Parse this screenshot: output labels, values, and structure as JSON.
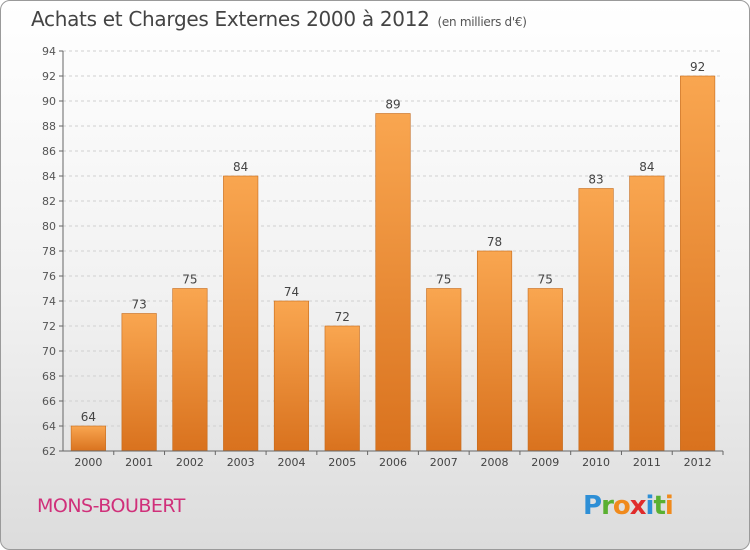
{
  "title": "Achats et Charges Externes 2000 à 2012",
  "unit": "(en milliers d'€)",
  "place": "MONS-BOUBERT",
  "logo": {
    "text": "Proxiti",
    "letters": [
      {
        "char": "P",
        "color": "#2e8fd6"
      },
      {
        "char": "r",
        "color": "#5ab031"
      },
      {
        "char": "o",
        "color": "#f08a1c"
      },
      {
        "char": "x",
        "color": "#e02b2b"
      },
      {
        "char": "i",
        "color": "#2e8fd6"
      },
      {
        "char": "t",
        "color": "#5ab031"
      },
      {
        "char": "i",
        "color": "#f08a1c"
      }
    ]
  },
  "colors": {
    "bar_light": "#f9a650",
    "bar_dark": "#d9721e",
    "grid": "#d0d0d0",
    "axis": "#666666"
  },
  "chart_data": {
    "type": "bar",
    "categories": [
      "2000",
      "2001",
      "2002",
      "2003",
      "2004",
      "2005",
      "2006",
      "2007",
      "2008",
      "2009",
      "2010",
      "2011",
      "2012"
    ],
    "values": [
      64,
      73,
      75,
      84,
      74,
      72,
      89,
      75,
      78,
      75,
      83,
      84,
      92
    ],
    "title": "Achats et Charges Externes 2000 à 2012",
    "ylim": [
      62,
      94
    ],
    "yticks": [
      62,
      64,
      66,
      68,
      70,
      72,
      74,
      76,
      78,
      80,
      82,
      84,
      86,
      88,
      90,
      92,
      94
    ],
    "grid": true
  }
}
